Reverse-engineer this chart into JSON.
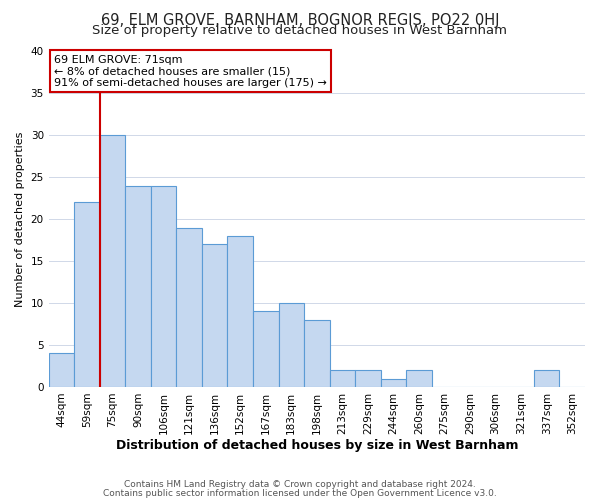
{
  "title": "69, ELM GROVE, BARNHAM, BOGNOR REGIS, PO22 0HJ",
  "subtitle": "Size of property relative to detached houses in West Barnham",
  "xlabel": "Distribution of detached houses by size in West Barnham",
  "ylabel": "Number of detached properties",
  "categories": [
    "44sqm",
    "59sqm",
    "75sqm",
    "90sqm",
    "106sqm",
    "121sqm",
    "136sqm",
    "152sqm",
    "167sqm",
    "183sqm",
    "198sqm",
    "213sqm",
    "229sqm",
    "244sqm",
    "260sqm",
    "275sqm",
    "290sqm",
    "306sqm",
    "321sqm",
    "337sqm",
    "352sqm"
  ],
  "values": [
    4,
    22,
    30,
    24,
    24,
    19,
    17,
    18,
    9,
    10,
    8,
    2,
    2,
    1,
    2,
    0,
    0,
    0,
    0,
    2,
    0
  ],
  "bar_color": "#c5d8f0",
  "bar_edge_color": "#5b9bd5",
  "red_line_index": 2,
  "annotation_lines": [
    "69 ELM GROVE: 71sqm",
    "← 8% of detached houses are smaller (15)",
    "91% of semi-detached houses are larger (175) →"
  ],
  "annotation_box_color": "#ffffff",
  "annotation_box_edge": "#cc0000",
  "red_line_color": "#cc0000",
  "ylim": [
    0,
    40
  ],
  "yticks": [
    0,
    5,
    10,
    15,
    20,
    25,
    30,
    35,
    40
  ],
  "footer1": "Contains HM Land Registry data © Crown copyright and database right 2024.",
  "footer2": "Contains public sector information licensed under the Open Government Licence v3.0.",
  "title_fontsize": 10.5,
  "subtitle_fontsize": 9.5,
  "xlabel_fontsize": 9,
  "ylabel_fontsize": 8,
  "tick_fontsize": 7.5,
  "annotation_fontsize": 8,
  "footer_fontsize": 6.5
}
